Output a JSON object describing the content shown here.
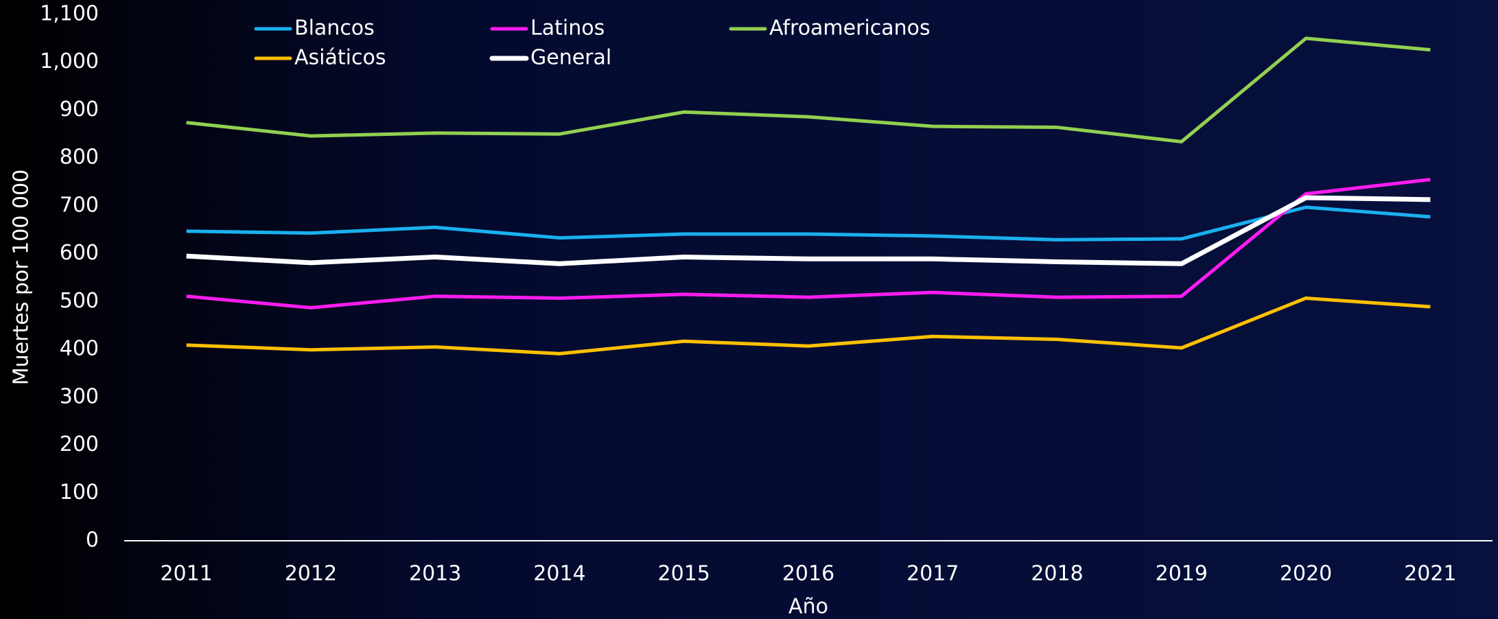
{
  "chart_data": {
    "type": "line",
    "x_label": "Año",
    "y_label": "Muertes por 100 000",
    "categories": [
      "2011",
      "2012",
      "2013",
      "2014",
      "2015",
      "2016",
      "2017",
      "2018",
      "2019",
      "2020",
      "2021"
    ],
    "series": [
      {
        "name": "Blancos",
        "color": "#1ab0ee",
        "values": [
          647,
          643,
          655,
          633,
          641,
          641,
          637,
          629,
          631,
          697,
          677
        ]
      },
      {
        "name": "Latinos",
        "color": "#ff1cf0",
        "values": [
          511,
          487,
          511,
          507,
          515,
          509,
          519,
          509,
          511,
          725,
          755
        ]
      },
      {
        "name": "Afroamericanos",
        "color": "#92d050",
        "values": [
          874,
          846,
          852,
          850,
          896,
          886,
          866,
          864,
          834,
          1050,
          1026
        ]
      },
      {
        "name": "Asiáticos",
        "color": "#ffc000",
        "values": [
          409,
          399,
          405,
          391,
          417,
          407,
          427,
          421,
          403,
          507,
          489
        ]
      },
      {
        "name": "General",
        "color": "#ffffff",
        "values": [
          595,
          581,
          593,
          579,
          593,
          589,
          589,
          583,
          579,
          717,
          713
        ]
      }
    ],
    "ylim": [
      0,
      1100
    ],
    "yticks": [
      0,
      100,
      200,
      300,
      400,
      500,
      600,
      700,
      800,
      900,
      {
        "value": 1000,
        "label": "1,000"
      },
      {
        "value": 1100,
        "label": "1,100"
      }
    ],
    "grid": false,
    "legend": "top"
  }
}
